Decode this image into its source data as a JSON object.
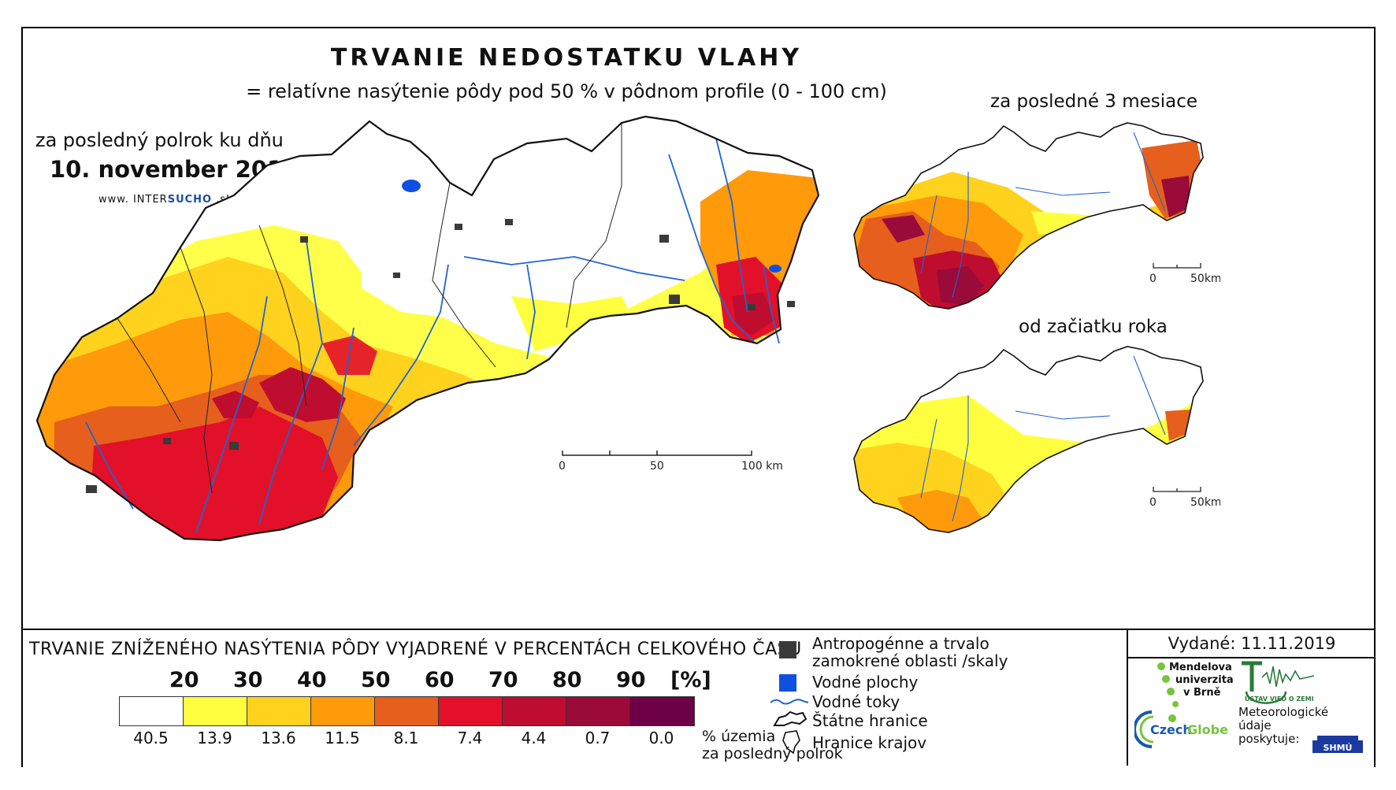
{
  "title": "TRVANIE NEDOSTATKU VLAHY",
  "subtitle": "= relatívne nasýtenie pôdy pod 50 % v pôdnom profile (0 - 100 cm)",
  "main_map": {
    "period_label": "za posledný polrok ku dňu",
    "date_label": "10. november 2019",
    "website": {
      "prefix": "www. INTER",
      "brand": "SUCHO",
      "suffix": " .sk"
    },
    "scale": {
      "ticks": [
        "0",
        "50",
        "100 km"
      ]
    }
  },
  "inset_3m": {
    "label": "za posledné 3 mesiace",
    "scale": {
      "ticks": [
        "0",
        "50km"
      ]
    }
  },
  "inset_ytd": {
    "label": "od začiatku roka",
    "scale": {
      "ticks": [
        "0",
        "50km"
      ]
    }
  },
  "legend": {
    "title": "TRVANIE ZNÍŽENÉHO NASÝTENIA PÔDY VYJADRENÉ V PERCENTÁCH CELKOVÉHO ČASU",
    "thresholds": [
      "20",
      "30",
      "40",
      "50",
      "60",
      "70",
      "80",
      "90"
    ],
    "unit": "[%]",
    "classes": [
      {
        "color": "#ffffff",
        "percent": "40.5"
      },
      {
        "color": "#ffff40",
        "percent": "13.9"
      },
      {
        "color": "#ffd21e",
        "percent": "13.6"
      },
      {
        "color": "#ff9a0a",
        "percent": "11.5"
      },
      {
        "color": "#e65f1c",
        "percent": "8.1"
      },
      {
        "color": "#e3102a",
        "percent": "7.4"
      },
      {
        "color": "#bf0d2f",
        "percent": "4.4"
      },
      {
        "color": "#9a0b3a",
        "percent": "0.7"
      },
      {
        "color": "#6e0048",
        "percent": "0.0"
      }
    ],
    "percent_note_line1": "% územia",
    "percent_note_line2": "za posledný polrok"
  },
  "symbols": {
    "anthropogenic_line1": "Antropogénne a trvalo",
    "anthropogenic_line2": "zamokrené oblasti /skaly",
    "water_bodies": "Vodné plochy",
    "water_courses": "Vodné toky",
    "state_border": "Štátne hranice",
    "region_border": "Hranice krajov"
  },
  "issued": "Vydané: 11.11.2019",
  "logos": {
    "mendel": [
      "Mendelova",
      "univerzita",
      "v Brně"
    ],
    "czechglobe_a": "Czech",
    "czechglobe_b": "Globe",
    "ustav": "ÚSTAV VIED O ZEMI",
    "meteo": [
      "Meteorologické",
      "údaje",
      "poskytuje:"
    ],
    "shmu": "SHMÚ"
  },
  "colors": {
    "river": "#1e64d2",
    "water": "#1050e0",
    "urban": "#3a3a3a"
  }
}
